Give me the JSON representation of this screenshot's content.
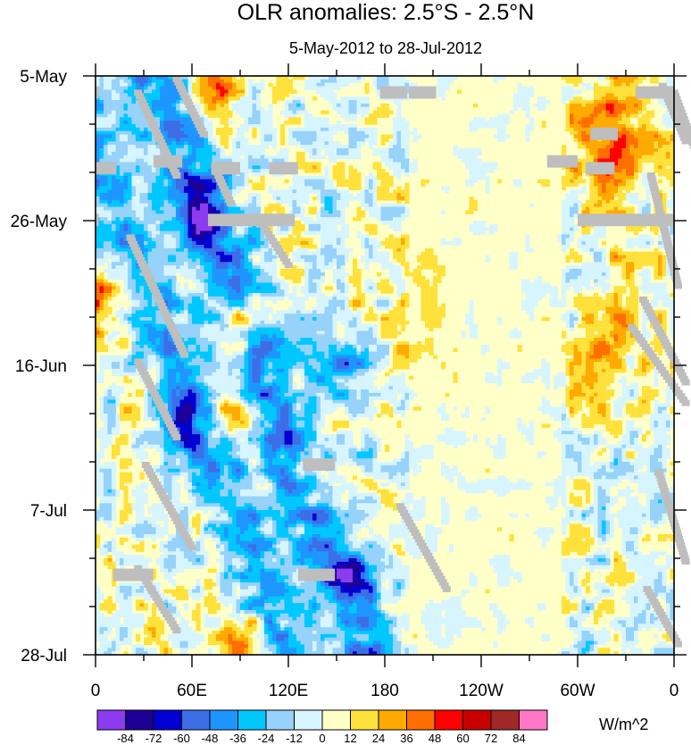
{
  "chart_data": {
    "type": "heatmap",
    "title": "OLR anomalies: 2.5°S - 2.5°N",
    "subtitle": "5-May-2012 to 28-Jul-2012",
    "x_ticks": [
      {
        "label": "0",
        "lon": 0
      },
      {
        "label": "60E",
        "lon": 60
      },
      {
        "label": "120E",
        "lon": 120
      },
      {
        "label": "180",
        "lon": 180
      },
      {
        "label": "120W",
        "lon": 240
      },
      {
        "label": "60W",
        "lon": 300
      },
      {
        "label": "0",
        "lon": 360
      }
    ],
    "x_range": [
      0,
      360
    ],
    "y_ticks": [
      {
        "label": "5-May",
        "day": 0
      },
      {
        "label": "26-May",
        "day": 21
      },
      {
        "label": "16-Jun",
        "day": 42
      },
      {
        "label": "7-Jul",
        "day": 63
      },
      {
        "label": "28-Jul",
        "day": 84
      }
    ],
    "y_range": [
      0,
      84
    ],
    "y_direction": "time-increasing-downward",
    "colorbar": {
      "units": "W/m^2",
      "levels": [
        -84,
        -72,
        -60,
        -48,
        -36,
        -24,
        -12,
        0,
        12,
        24,
        36,
        48,
        60,
        72,
        84
      ],
      "colors": [
        "#8c3cf0",
        "#1e0096",
        "#0000d2",
        "#3c6ee6",
        "#1e96ff",
        "#00c8ff",
        "#96d2fa",
        "#d7f5ff",
        "#ffffc8",
        "#ffe13c",
        "#ffaa00",
        "#ff6e00",
        "#ff0000",
        "#c80000",
        "#a02828",
        "#ff78c8"
      ]
    },
    "missing_color": "#bebebe"
  }
}
